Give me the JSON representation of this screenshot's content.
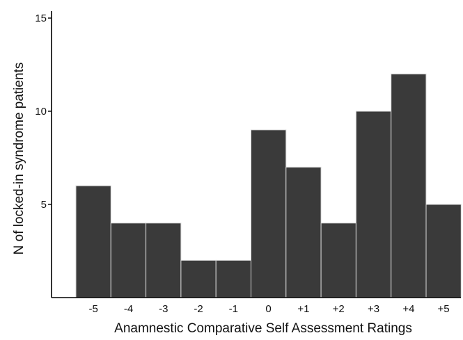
{
  "chart_data": {
    "type": "bar",
    "xlabel": "Anamnestic Comparative Self Assessment Ratings",
    "ylabel": "N of locked-in syndrome patients",
    "categories": [
      "-5",
      "-4",
      "-3",
      "-2",
      "-1",
      "0",
      "+1",
      "+2",
      "+3",
      "+4",
      "+5"
    ],
    "values": [
      6,
      4,
      4,
      2,
      2,
      9,
      7,
      4,
      10,
      12,
      5
    ],
    "ylim": [
      0,
      15
    ],
    "yticks": [
      5,
      10,
      15
    ],
    "ytick_labels": [
      "5",
      "10",
      "15"
    ],
    "grid": false,
    "legend": "none",
    "colors": {
      "bar": "#3a3a3a",
      "bar_edge": "#d9d9d9"
    }
  }
}
